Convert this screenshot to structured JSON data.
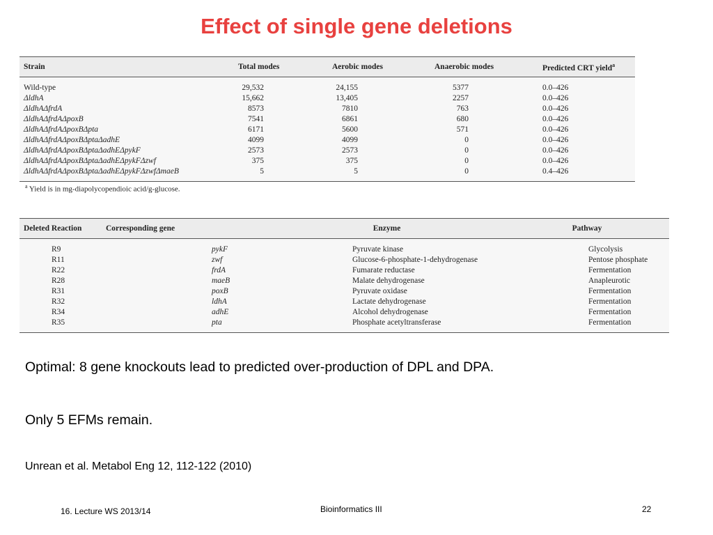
{
  "title": "Effect of single gene deletions",
  "table1": {
    "headers": [
      "Strain",
      "Total modes",
      "Aerobic modes",
      "Anaerobic modes",
      "Predicted CRT yield",
      "a"
    ],
    "rows": [
      [
        "Wild-type",
        "29,532",
        "24,155",
        "5377",
        "0.0–426"
      ],
      [
        "ΔldhA",
        "15,662",
        "13,405",
        "2257",
        "0.0–426"
      ],
      [
        "ΔldhAΔfrdA",
        "8573",
        "7810",
        "763",
        "0.0–426"
      ],
      [
        "ΔldhAΔfrdAΔpoxB",
        "7541",
        "6861",
        "680",
        "0.0–426"
      ],
      [
        "ΔldhAΔfrdAΔpoxBΔpta",
        "6171",
        "5600",
        "571",
        "0.0–426"
      ],
      [
        "ΔldhAΔfrdAΔpoxBΔptaΔadhE",
        "4099",
        "4099",
        "0",
        "0.0–426"
      ],
      [
        "ΔldhAΔfrdAΔpoxBΔptaΔadhEΔpykF",
        "2573",
        "2573",
        "0",
        "0.0–426"
      ],
      [
        "ΔldhAΔfrdAΔpoxBΔptaΔadhEΔpykFΔzwf",
        "375",
        "375",
        "0",
        "0.0–426"
      ],
      [
        "ΔldhAΔfrdAΔpoxBΔptaΔadhEΔpykFΔzwfΔmaeB",
        "5",
        "5",
        "0",
        "0.4–426"
      ]
    ],
    "footnote_mark": "a",
    "footnote": "Yield is in mg-diapolycopendioic acid/g-glucose."
  },
  "table2": {
    "headers": [
      "Deleted Reaction",
      "Corresponding gene",
      "Enzyme",
      "Pathway"
    ],
    "rows": [
      [
        "R9",
        "pykF",
        "Pyruvate kinase",
        "Glycolysis"
      ],
      [
        "R11",
        "zwf",
        "Glucose-6-phosphate-1-dehydrogenase",
        "Pentose phosphate"
      ],
      [
        "R22",
        "frdA",
        "Fumarate reductase",
        "Fermentation"
      ],
      [
        "R28",
        "maeB",
        "Malate dehydrogenase",
        "Anapleurotic"
      ],
      [
        "R31",
        "poxB",
        "Pyruvate oxidase",
        "Fermentation"
      ],
      [
        "R32",
        "ldhA",
        "Lactate dehydrogenase",
        "Fermentation"
      ],
      [
        "R34",
        "adhE",
        "Alcohol dehydrogenase",
        "Fermentation"
      ],
      [
        "R35",
        "pta",
        "Phosphate acetyltransferase",
        "Fermentation"
      ]
    ]
  },
  "body": {
    "line1": "Optimal: 8 gene knockouts lead to predicted over-production of DPL and DPA.",
    "line2": "Only 5 EFMs remain.",
    "citation": "Unrean et al. Metabol Eng 12, 112-122 (2010)"
  },
  "footer": {
    "left": "16. Lecture WS 2013/14",
    "center": "Bioinformatics III",
    "page": "22"
  },
  "colors": {
    "title": "#e8413f"
  }
}
